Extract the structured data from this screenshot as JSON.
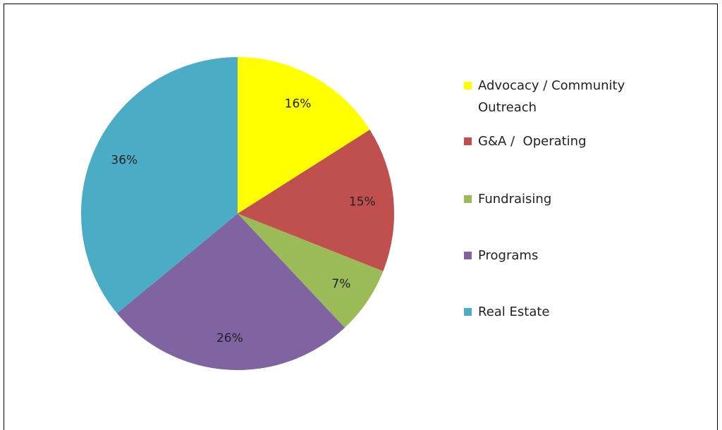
{
  "chart_data": {
    "type": "pie",
    "categories": [
      "Advocacy / Community Outreach",
      "G&A /  Operating",
      "Fundraising",
      "Programs",
      "Real Estate"
    ],
    "values": [
      16,
      15,
      7,
      26,
      36
    ],
    "value_labels": [
      "16%",
      "15%",
      "7%",
      "26%",
      "36%"
    ],
    "colors": [
      "#ffff00",
      "#c0504d",
      "#9bbb59",
      "#8064a2",
      "#4bacc6"
    ],
    "legend": "right"
  }
}
